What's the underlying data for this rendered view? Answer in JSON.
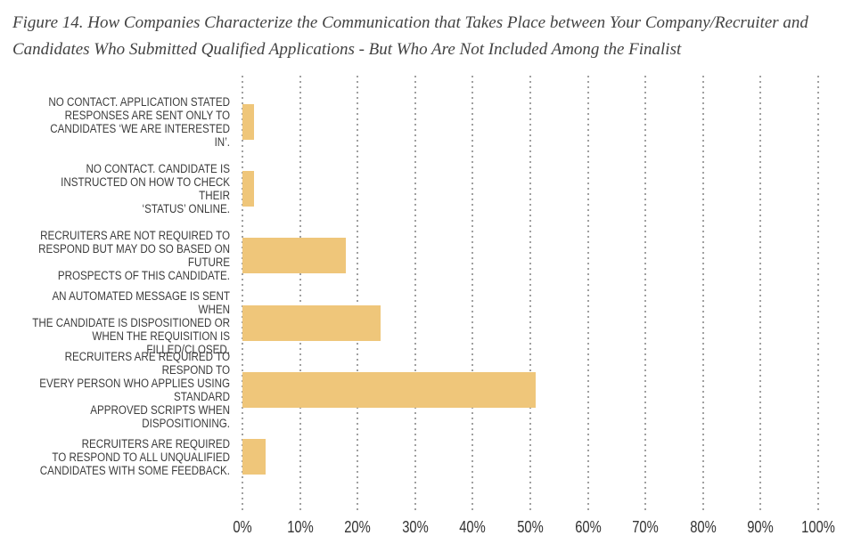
{
  "figure": {
    "title": "Figure 14. How Companies Characterize the Communication that Takes Place between Your Company/Recruiter and Candidates Who Submitted Qualified Applications - But Who Are Not Included Among the Finalist"
  },
  "rows": [
    {
      "lines": [
        "NO CONTACT. APPLICATION STATED",
        "RESPONSES ARE SENT ONLY TO",
        "CANDIDATES ‘WE ARE INTERESTED IN’."
      ]
    },
    {
      "lines": [
        "NO CONTACT. CANDIDATE IS",
        "INSTRUCTED ON HOW TO CHECK THEIR",
        "‘STATUS’ ONLINE."
      ]
    },
    {
      "lines": [
        "RECRUITERS ARE NOT REQUIRED TO",
        "RESPOND BUT MAY DO SO BASED ON FUTURE",
        "PROSPECTS OF THIS CANDIDATE."
      ]
    },
    {
      "lines": [
        "AN AUTOMATED MESSAGE IS SENT WHEN",
        "THE CANDIDATE IS DISPOSITIONED OR",
        "WHEN THE REQUISITION IS FILLED/CLOSED."
      ]
    },
    {
      "lines": [
        "RECRUITERS ARE REQUIRED TO RESPOND TO",
        "EVERY PERSON WHO APPLIES USING STANDARD",
        "APPROVED SCRIPTS WHEN DISPOSITIONING."
      ]
    },
    {
      "lines": [
        "RECRUITERS ARE REQUIRED",
        "TO RESPOND TO ALL UNQUALIFIED",
        "CANDIDATES WITH SOME FEEDBACK."
      ]
    }
  ],
  "chart_data": {
    "type": "bar",
    "orientation": "horizontal",
    "title": "Figure 14. How Companies Characterize the Communication that Takes Place between Your Company/Recruiter and Candidates Who Submitted Qualified Applications - But Who Are Not Included Among the Finalist",
    "categories": [
      "NO CONTACT. APPLICATION STATED RESPONSES ARE SENT ONLY TO CANDIDATES ‘WE ARE INTERESTED IN’.",
      "NO CONTACT. CANDIDATE IS INSTRUCTED ON HOW TO CHECK THEIR ‘STATUS’ ONLINE.",
      "RECRUITERS ARE NOT REQUIRED TO RESPOND BUT MAY DO SO BASED ON FUTURE PROSPECTS OF THIS CANDIDATE.",
      "AN AUTOMATED MESSAGE IS SENT WHEN THE CANDIDATE IS DISPOSITIONED OR WHEN THE REQUISITION IS FILLED/CLOSED.",
      "RECRUITERS ARE REQUIRED TO RESPOND TO EVERY PERSON WHO APPLIES USING STANDARD APPROVED SCRIPTS WHEN DISPOSITIONING.",
      "RECRUITERS ARE REQUIRED TO RESPOND TO ALL UNQUALIFIED CANDIDATES WITH SOME FEEDBACK."
    ],
    "values": [
      2,
      2,
      18,
      24,
      51,
      4
    ],
    "x_ticks": [
      "0%",
      "10%",
      "20%",
      "30%",
      "40%",
      "50%",
      "60%",
      "70%",
      "80%",
      "90%",
      "100%"
    ],
    "xlim": [
      0,
      100
    ],
    "xlabel": "",
    "ylabel": "",
    "grid": "vertical-dotted",
    "legend": "none"
  },
  "colors": {
    "bar": "#efc67a",
    "gridline": "#a0a0a0",
    "title_text": "#424242",
    "label_text": "#3c3c3c",
    "tick_text": "#333333"
  }
}
